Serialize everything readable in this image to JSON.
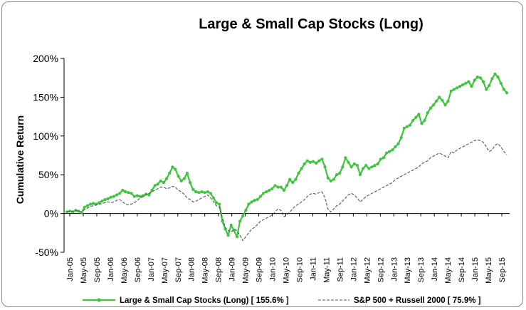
{
  "chart_data": {
    "type": "line",
    "title": "Large & Small Cap Stocks (Long)",
    "ylabel": "Cumulative Return",
    "xlabel": "",
    "ylim": [
      -50,
      200
    ],
    "yticks": [
      -50,
      0,
      50,
      100,
      150,
      200
    ],
    "ytick_labels": [
      "-50%",
      "0%",
      "50%",
      "100%",
      "150%",
      "200%"
    ],
    "x_tick_labels": [
      "Jan-05",
      "May-05",
      "Sep-05",
      "Jan-06",
      "May-06",
      "Sep-06",
      "Jan-07",
      "May-07",
      "Sep-07",
      "Jan-08",
      "May-08",
      "Sep-08",
      "Jan-09",
      "May-09",
      "Sep-09",
      "Jan-10",
      "May-10",
      "Sep-10",
      "Jan-11",
      "May-11",
      "Sep-11",
      "Jan-12",
      "May-12",
      "Sep-12",
      "Jan-13",
      "May-13",
      "Sep-13",
      "Jan-14",
      "May-14",
      "Sep-14",
      "Jan-15",
      "May-15",
      "Sep-15"
    ],
    "legend_position": "bottom",
    "grid": false,
    "series": [
      {
        "name": "Large & Small Cap Stocks (Long) [ 155.6% ]",
        "color": "#3ec43e",
        "style": "solid-markers",
        "values": [
          2,
          3,
          2,
          4,
          3,
          1,
          8,
          10,
          12,
          13,
          12,
          14,
          16,
          18,
          19,
          21,
          22,
          24,
          26,
          30,
          28,
          27,
          26,
          22,
          23,
          22,
          23,
          25,
          24,
          30,
          36,
          38,
          42,
          40,
          45,
          52,
          60,
          57,
          48,
          42,
          45,
          52,
          40,
          31,
          28,
          27,
          28,
          27,
          28,
          26,
          20,
          14,
          12,
          -10,
          -20,
          -28,
          -15,
          -22,
          -30,
          -10,
          -3,
          4,
          12,
          15,
          17,
          18,
          22,
          26,
          28,
          30,
          32,
          36,
          34,
          34,
          30,
          36,
          44,
          40,
          44,
          52,
          58,
          64,
          68,
          66,
          67,
          65,
          68,
          70,
          60,
          46,
          42,
          44,
          50,
          52,
          60,
          72,
          66,
          60,
          64,
          62,
          50,
          58,
          62,
          58,
          60,
          62,
          64,
          70,
          72,
          78,
          80,
          82,
          86,
          90,
          98,
          110,
          112,
          114,
          120,
          124,
          128,
          116,
          120,
          130,
          136,
          140,
          145,
          150,
          146,
          140,
          145,
          158,
          160,
          162,
          164,
          166,
          168,
          170,
          164,
          172,
          176,
          175,
          170,
          160,
          165,
          174,
          180,
          176,
          168,
          160,
          155.6
        ]
      },
      {
        "name": "S&P 500 + Russell 2000 [ 75.9% ]",
        "color": "#555555",
        "style": "dashed",
        "values": [
          2,
          3,
          3,
          4,
          3,
          2,
          5,
          7,
          9,
          10,
          11,
          12,
          13,
          14,
          15,
          14,
          15,
          17,
          18,
          15,
          12,
          11,
          12,
          14,
          17,
          20,
          22,
          24,
          26,
          28,
          30,
          32,
          34,
          34,
          32,
          33,
          35,
          34,
          30,
          28,
          25,
          20,
          18,
          15,
          16,
          18,
          20,
          22,
          24,
          20,
          15,
          10,
          8,
          -5,
          -18,
          -22,
          -24,
          -20,
          -22,
          -28,
          -35,
          -30,
          -25,
          -20,
          -18,
          -14,
          -10,
          -8,
          -6,
          -4,
          -2,
          2,
          6,
          4,
          -4,
          -2,
          2,
          6,
          10,
          12,
          15,
          18,
          22,
          25,
          26,
          25,
          27,
          28,
          20,
          6,
          2,
          6,
          10,
          12,
          16,
          20,
          24,
          26,
          24,
          20,
          15,
          18,
          22,
          24,
          26,
          28,
          30,
          32,
          34,
          36,
          38,
          40,
          44,
          46,
          48,
          50,
          52,
          54,
          56,
          58,
          60,
          64,
          66,
          68,
          72,
          74,
          76,
          78,
          76,
          74,
          72,
          80,
          78,
          82,
          84,
          86,
          88,
          90,
          92,
          94,
          95,
          94,
          92,
          86,
          80,
          82,
          88,
          90,
          86,
          80,
          75.9
        ]
      }
    ]
  }
}
